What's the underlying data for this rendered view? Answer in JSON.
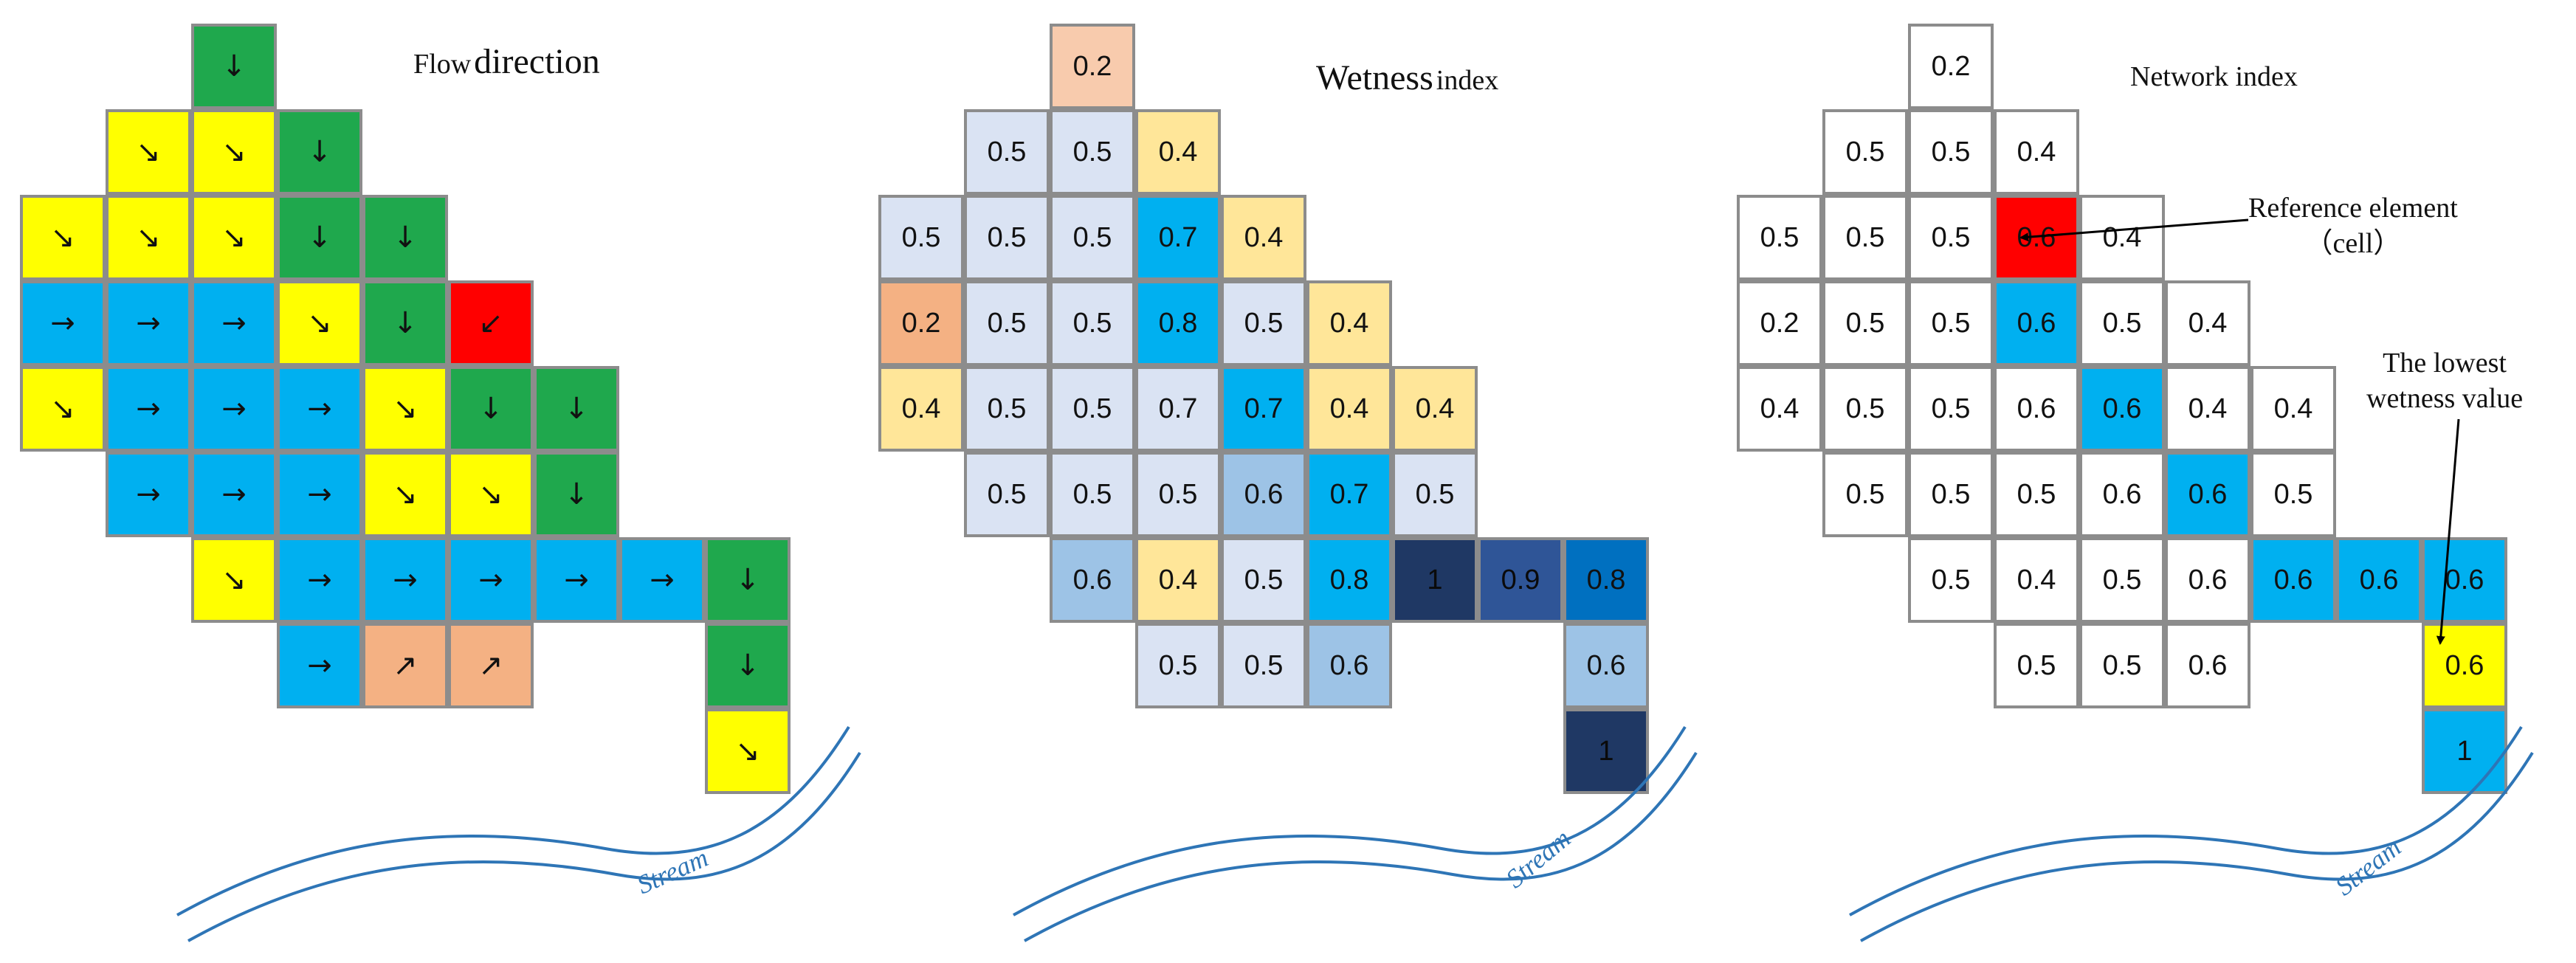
{
  "colors": {
    "green": "#1fa84d",
    "yellow": "#ffff00",
    "blue": "#00b0f0",
    "salmon": "#f4b183",
    "red": "#ff0000",
    "white": "#ffffff",
    "w_peach": "#f8cbad",
    "w_sand": "#ffe699",
    "w_light": "#dae3f3",
    "w_mid": "#9dc3e6",
    "w_blue": "#00b0f0",
    "w_navy": "#1f3864",
    "w_royal": "#2f5597",
    "w_steel": "#0070c0",
    "grid_border": "#8c8c8c",
    "stream": "#2e75b6"
  },
  "panels": [
    {
      "id": "flow",
      "title_big": "direction",
      "title_small": "Flow",
      "stream_label": "Stream",
      "text_color": "#111111",
      "cells": [
        {
          "r": 0,
          "c": 2,
          "fill": "green",
          "text": "↓"
        },
        {
          "r": 1,
          "c": 1,
          "fill": "yellow",
          "text": "↘"
        },
        {
          "r": 1,
          "c": 2,
          "fill": "yellow",
          "text": "↘"
        },
        {
          "r": 1,
          "c": 3,
          "fill": "green",
          "text": "↓"
        },
        {
          "r": 2,
          "c": 0,
          "fill": "yellow",
          "text": "↘"
        },
        {
          "r": 2,
          "c": 1,
          "fill": "yellow",
          "text": "↘"
        },
        {
          "r": 2,
          "c": 2,
          "fill": "yellow",
          "text": "↘"
        },
        {
          "r": 2,
          "c": 3,
          "fill": "green",
          "text": "↓"
        },
        {
          "r": 2,
          "c": 4,
          "fill": "green",
          "text": "↓"
        },
        {
          "r": 3,
          "c": 0,
          "fill": "blue",
          "text": "→"
        },
        {
          "r": 3,
          "c": 1,
          "fill": "blue",
          "text": "→"
        },
        {
          "r": 3,
          "c": 2,
          "fill": "blue",
          "text": "→"
        },
        {
          "r": 3,
          "c": 3,
          "fill": "yellow",
          "text": "↘"
        },
        {
          "r": 3,
          "c": 4,
          "fill": "green",
          "text": "↓"
        },
        {
          "r": 3,
          "c": 5,
          "fill": "red",
          "text": "↙"
        },
        {
          "r": 4,
          "c": 0,
          "fill": "yellow",
          "text": "↘"
        },
        {
          "r": 4,
          "c": 1,
          "fill": "blue",
          "text": "→"
        },
        {
          "r": 4,
          "c": 2,
          "fill": "blue",
          "text": "→"
        },
        {
          "r": 4,
          "c": 3,
          "fill": "blue",
          "text": "→"
        },
        {
          "r": 4,
          "c": 4,
          "fill": "yellow",
          "text": "↘"
        },
        {
          "r": 4,
          "c": 5,
          "fill": "green",
          "text": "↓"
        },
        {
          "r": 4,
          "c": 6,
          "fill": "green",
          "text": "↓"
        },
        {
          "r": 5,
          "c": 1,
          "fill": "blue",
          "text": "→"
        },
        {
          "r": 5,
          "c": 2,
          "fill": "blue",
          "text": "→"
        },
        {
          "r": 5,
          "c": 3,
          "fill": "blue",
          "text": "→"
        },
        {
          "r": 5,
          "c": 4,
          "fill": "yellow",
          "text": "↘"
        },
        {
          "r": 5,
          "c": 5,
          "fill": "yellow",
          "text": "↘"
        },
        {
          "r": 5,
          "c": 6,
          "fill": "green",
          "text": "↓"
        },
        {
          "r": 6,
          "c": 2,
          "fill": "yellow",
          "text": "↘"
        },
        {
          "r": 6,
          "c": 3,
          "fill": "blue",
          "text": "→"
        },
        {
          "r": 6,
          "c": 4,
          "fill": "blue",
          "text": "→"
        },
        {
          "r": 6,
          "c": 5,
          "fill": "blue",
          "text": "→"
        },
        {
          "r": 6,
          "c": 6,
          "fill": "blue",
          "text": "→"
        },
        {
          "r": 6,
          "c": 7,
          "fill": "blue",
          "text": "→"
        },
        {
          "r": 6,
          "c": 8,
          "fill": "green",
          "text": "↓"
        },
        {
          "r": 7,
          "c": 3,
          "fill": "blue",
          "text": "→"
        },
        {
          "r": 7,
          "c": 4,
          "fill": "salmon",
          "text": "↗"
        },
        {
          "r": 7,
          "c": 5,
          "fill": "salmon",
          "text": "↗"
        },
        {
          "r": 7,
          "c": 8,
          "fill": "green",
          "text": "↓"
        },
        {
          "r": 8,
          "c": 8,
          "fill": "yellow",
          "text": "↘"
        }
      ]
    },
    {
      "id": "wetness",
      "title_big": "Wetness",
      "title_small": "index",
      "stream_label": "Stream",
      "cells": [
        {
          "r": 0,
          "c": 2,
          "fill": "w_peach",
          "text": "0.2"
        },
        {
          "r": 1,
          "c": 1,
          "fill": "w_light",
          "text": "0.5"
        },
        {
          "r": 1,
          "c": 2,
          "fill": "w_light",
          "text": "0.5"
        },
        {
          "r": 1,
          "c": 3,
          "fill": "w_sand",
          "text": "0.4"
        },
        {
          "r": 2,
          "c": 0,
          "fill": "w_light",
          "text": "0.5"
        },
        {
          "r": 2,
          "c": 1,
          "fill": "w_light",
          "text": "0.5"
        },
        {
          "r": 2,
          "c": 2,
          "fill": "w_light",
          "text": "0.5"
        },
        {
          "r": 2,
          "c": 3,
          "fill": "w_blue",
          "text": "0.7"
        },
        {
          "r": 2,
          "c": 4,
          "fill": "w_sand",
          "text": "0.4"
        },
        {
          "r": 3,
          "c": 0,
          "fill": "salmon",
          "text": "0.2"
        },
        {
          "r": 3,
          "c": 1,
          "fill": "w_light",
          "text": "0.5"
        },
        {
          "r": 3,
          "c": 2,
          "fill": "w_light",
          "text": "0.5"
        },
        {
          "r": 3,
          "c": 3,
          "fill": "w_blue",
          "text": "0.8"
        },
        {
          "r": 3,
          "c": 4,
          "fill": "w_light",
          "text": "0.5"
        },
        {
          "r": 3,
          "c": 5,
          "fill": "w_sand",
          "text": "0.4"
        },
        {
          "r": 4,
          "c": 0,
          "fill": "w_sand",
          "text": "0.4"
        },
        {
          "r": 4,
          "c": 1,
          "fill": "w_light",
          "text": "0.5"
        },
        {
          "r": 4,
          "c": 2,
          "fill": "w_light",
          "text": "0.5"
        },
        {
          "r": 4,
          "c": 3,
          "fill": "w_light",
          "text": "0.7"
        },
        {
          "r": 4,
          "c": 4,
          "fill": "w_blue",
          "text": "0.7"
        },
        {
          "r": 4,
          "c": 5,
          "fill": "w_sand",
          "text": "0.4"
        },
        {
          "r": 4,
          "c": 6,
          "fill": "w_sand",
          "text": "0.4"
        },
        {
          "r": 5,
          "c": 1,
          "fill": "w_light",
          "text": "0.5"
        },
        {
          "r": 5,
          "c": 2,
          "fill": "w_light",
          "text": "0.5"
        },
        {
          "r": 5,
          "c": 3,
          "fill": "w_light",
          "text": "0.5"
        },
        {
          "r": 5,
          "c": 4,
          "fill": "w_mid",
          "text": "0.6"
        },
        {
          "r": 5,
          "c": 5,
          "fill": "w_blue",
          "text": "0.7"
        },
        {
          "r": 5,
          "c": 6,
          "fill": "w_light",
          "text": "0.5"
        },
        {
          "r": 6,
          "c": 2,
          "fill": "w_mid",
          "text": "0.6"
        },
        {
          "r": 6,
          "c": 3,
          "fill": "w_sand",
          "text": "0.4"
        },
        {
          "r": 6,
          "c": 4,
          "fill": "w_light",
          "text": "0.5"
        },
        {
          "r": 6,
          "c": 5,
          "fill": "w_blue",
          "text": "0.8"
        },
        {
          "r": 6,
          "c": 6,
          "fill": "w_navy",
          "text": "1"
        },
        {
          "r": 6,
          "c": 7,
          "fill": "w_royal",
          "text": "0.9"
        },
        {
          "r": 6,
          "c": 8,
          "fill": "w_steel",
          "text": "0.8"
        },
        {
          "r": 7,
          "c": 3,
          "fill": "w_light",
          "text": "0.5"
        },
        {
          "r": 7,
          "c": 4,
          "fill": "w_light",
          "text": "0.5"
        },
        {
          "r": 7,
          "c": 5,
          "fill": "w_mid",
          "text": "0.6"
        },
        {
          "r": 7,
          "c": 8,
          "fill": "w_mid",
          "text": "0.6"
        },
        {
          "r": 8,
          "c": 8,
          "fill": "w_navy",
          "text": "1"
        }
      ]
    },
    {
      "id": "network",
      "title_big": "",
      "title_small": "Network index",
      "stream_label": "Stream",
      "annotations": {
        "reference_line1": "Reference element",
        "reference_line2": "（cell）",
        "lowest_line1": "The lowest",
        "lowest_line2": "wetness value"
      },
      "cells": [
        {
          "r": 0,
          "c": 2,
          "fill": "white",
          "text": "0.2"
        },
        {
          "r": 1,
          "c": 1,
          "fill": "white",
          "text": "0.5"
        },
        {
          "r": 1,
          "c": 2,
          "fill": "white",
          "text": "0.5"
        },
        {
          "r": 1,
          "c": 3,
          "fill": "white",
          "text": "0.4"
        },
        {
          "r": 2,
          "c": 0,
          "fill": "white",
          "text": "0.5"
        },
        {
          "r": 2,
          "c": 1,
          "fill": "white",
          "text": "0.5"
        },
        {
          "r": 2,
          "c": 2,
          "fill": "white",
          "text": "0.5"
        },
        {
          "r": 2,
          "c": 3,
          "fill": "red",
          "text": "0.6"
        },
        {
          "r": 2,
          "c": 4,
          "fill": "white",
          "text": "0.4"
        },
        {
          "r": 3,
          "c": 0,
          "fill": "white",
          "text": "0.2"
        },
        {
          "r": 3,
          "c": 1,
          "fill": "white",
          "text": "0.5"
        },
        {
          "r": 3,
          "c": 2,
          "fill": "white",
          "text": "0.5"
        },
        {
          "r": 3,
          "c": 3,
          "fill": "blue",
          "text": "0.6"
        },
        {
          "r": 3,
          "c": 4,
          "fill": "white",
          "text": "0.5"
        },
        {
          "r": 3,
          "c": 5,
          "fill": "white",
          "text": "0.4"
        },
        {
          "r": 4,
          "c": 0,
          "fill": "white",
          "text": "0.4"
        },
        {
          "r": 4,
          "c": 1,
          "fill": "white",
          "text": "0.5"
        },
        {
          "r": 4,
          "c": 2,
          "fill": "white",
          "text": "0.5"
        },
        {
          "r": 4,
          "c": 3,
          "fill": "white",
          "text": "0.6"
        },
        {
          "r": 4,
          "c": 4,
          "fill": "blue",
          "text": "0.6"
        },
        {
          "r": 4,
          "c": 5,
          "fill": "white",
          "text": "0.4"
        },
        {
          "r": 4,
          "c": 6,
          "fill": "white",
          "text": "0.4"
        },
        {
          "r": 5,
          "c": 1,
          "fill": "white",
          "text": "0.5"
        },
        {
          "r": 5,
          "c": 2,
          "fill": "white",
          "text": "0.5"
        },
        {
          "r": 5,
          "c": 3,
          "fill": "white",
          "text": "0.5"
        },
        {
          "r": 5,
          "c": 4,
          "fill": "white",
          "text": "0.6"
        },
        {
          "r": 5,
          "c": 5,
          "fill": "blue",
          "text": "0.6"
        },
        {
          "r": 5,
          "c": 6,
          "fill": "white",
          "text": "0.5"
        },
        {
          "r": 6,
          "c": 2,
          "fill": "white",
          "text": "0.5"
        },
        {
          "r": 6,
          "c": 3,
          "fill": "white",
          "text": "0.4"
        },
        {
          "r": 6,
          "c": 4,
          "fill": "white",
          "text": "0.5"
        },
        {
          "r": 6,
          "c": 5,
          "fill": "white",
          "text": "0.6"
        },
        {
          "r": 6,
          "c": 6,
          "fill": "blue",
          "text": "0.6"
        },
        {
          "r": 6,
          "c": 7,
          "fill": "blue",
          "text": "0.6"
        },
        {
          "r": 6,
          "c": 8,
          "fill": "blue",
          "text": "0.6"
        },
        {
          "r": 7,
          "c": 3,
          "fill": "white",
          "text": "0.5"
        },
        {
          "r": 7,
          "c": 4,
          "fill": "white",
          "text": "0.5"
        },
        {
          "r": 7,
          "c": 5,
          "fill": "white",
          "text": "0.6"
        },
        {
          "r": 7,
          "c": 8,
          "fill": "yellow",
          "text": "0.6"
        },
        {
          "r": 8,
          "c": 8,
          "fill": "blue",
          "text": "1"
        }
      ]
    }
  ]
}
